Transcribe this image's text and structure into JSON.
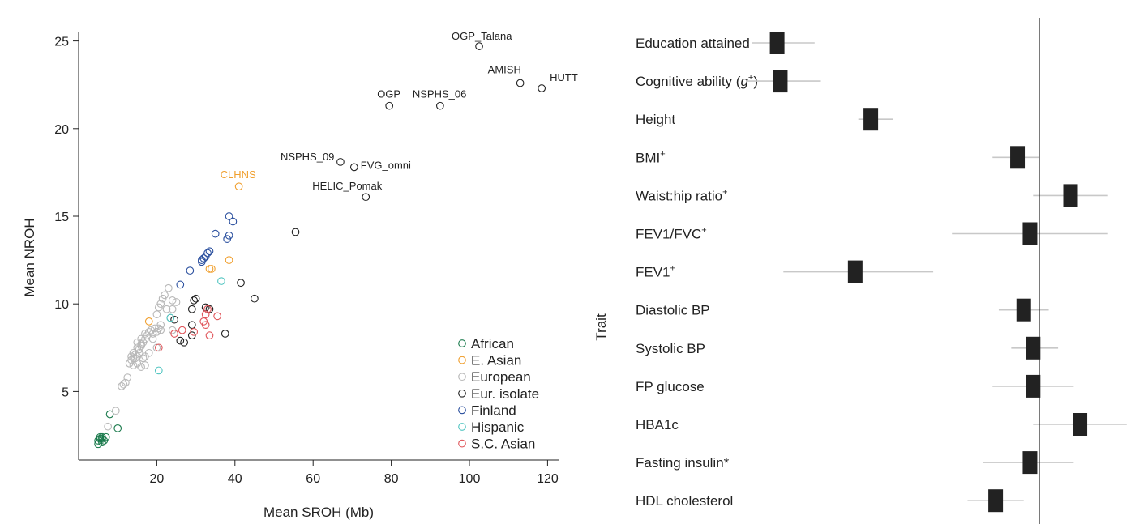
{
  "chart_data": [
    {
      "type": "scatter",
      "xlabel": "Mean SROH (Mb)",
      "ylabel": "Mean NROH",
      "xlim": [
        0,
        122
      ],
      "ylim": [
        0.5,
        26
      ],
      "xticks": [
        20,
        40,
        60,
        80,
        100,
        120
      ],
      "yticks": [
        5,
        10,
        15,
        20,
        25
      ],
      "grid": false,
      "legend_position": "bottom-right",
      "series": [
        {
          "name": "African",
          "color": "#1a7a4c",
          "points": [
            [
              5,
              2.2
            ],
            [
              5.5,
              2.3
            ],
            [
              6,
              2.4
            ],
            [
              6.5,
              2.2
            ],
            [
              5,
              2
            ],
            [
              7,
              2.4
            ],
            [
              6,
              2.1
            ],
            [
              5.5,
              2.4
            ],
            [
              8,
              3.7
            ],
            [
              10,
              2.9
            ],
            [
              6,
              2.3
            ]
          ]
        },
        {
          "name": "E. Asian",
          "color": "#f0a030",
          "points": [
            [
              41,
              16.7
            ],
            [
              38.5,
              12.5
            ],
            [
              34,
              12
            ],
            [
              33.5,
              12
            ],
            [
              18,
              9
            ]
          ]
        },
        {
          "name": "European",
          "color": "#b8b8b8",
          "points": [
            [
              7.5,
              3
            ],
            [
              9.5,
              3.9
            ],
            [
              11,
              5.3
            ],
            [
              11.5,
              5.4
            ],
            [
              12,
              5.5
            ],
            [
              12.5,
              5.8
            ],
            [
              13,
              6.6
            ],
            [
              14,
              6.5
            ],
            [
              13.5,
              6.8
            ],
            [
              14.5,
              6.9
            ],
            [
              15,
              7
            ],
            [
              14,
              7.2
            ],
            [
              15.5,
              7.4
            ],
            [
              16,
              7.6
            ],
            [
              16.5,
              7.8
            ],
            [
              17,
              8
            ],
            [
              17.5,
              8.2
            ],
            [
              18,
              8.4
            ],
            [
              18.5,
              8.5
            ],
            [
              19,
              8.3
            ],
            [
              19.5,
              8.6
            ],
            [
              20,
              8.4
            ],
            [
              20.5,
              8.6
            ],
            [
              21,
              8.5
            ],
            [
              15,
              7.8
            ],
            [
              16,
              8
            ],
            [
              17,
              8.3
            ],
            [
              15.5,
              7.2
            ],
            [
              16.5,
              6.9
            ],
            [
              17,
              6.5
            ],
            [
              16,
              6.4
            ],
            [
              15,
              6.6
            ],
            [
              14,
              6.9
            ],
            [
              14.5,
              7.1
            ],
            [
              13.5,
              7
            ],
            [
              15,
              7.5
            ],
            [
              16,
              7.7
            ],
            [
              19,
              8
            ],
            [
              20,
              9.4
            ],
            [
              20.5,
              9.8
            ],
            [
              21,
              10
            ],
            [
              21.5,
              10.3
            ],
            [
              22,
              10.5
            ],
            [
              23,
              10.9
            ],
            [
              24,
              10.2
            ],
            [
              25,
              10.1
            ],
            [
              22.5,
              9.7
            ],
            [
              24,
              9.7
            ],
            [
              21,
              8.8
            ],
            [
              23.5,
              9.2
            ],
            [
              24,
              8.5
            ],
            [
              20,
              7.5
            ],
            [
              18,
              7.2
            ],
            [
              17,
              7
            ]
          ]
        },
        {
          "name": "Eur. isolate",
          "color": "#222222",
          "points": [
            [
              102.5,
              24.7
            ],
            [
              113,
              22.6
            ],
            [
              118.5,
              22.3
            ],
            [
              79.5,
              21.3
            ],
            [
              92.5,
              21.3
            ],
            [
              67,
              18.1
            ],
            [
              70.5,
              17.8
            ],
            [
              73.5,
              16.1
            ],
            [
              55.5,
              14.1
            ],
            [
              41.5,
              11.2
            ],
            [
              45,
              10.3
            ],
            [
              30,
              10.3
            ],
            [
              29.5,
              10.2
            ],
            [
              29,
              9.7
            ],
            [
              32.5,
              9.8
            ],
            [
              33.5,
              9.7
            ],
            [
              24.5,
              9.1
            ],
            [
              29,
              8.8
            ],
            [
              37.5,
              8.3
            ],
            [
              29,
              8.2
            ],
            [
              26,
              7.9
            ],
            [
              27,
              7.8
            ]
          ]
        },
        {
          "name": "Finland",
          "color": "#2a4f9e",
          "points": [
            [
              38.5,
              15
            ],
            [
              39.5,
              14.7
            ],
            [
              38.5,
              13.9
            ],
            [
              38,
              13.7
            ],
            [
              35,
              14
            ],
            [
              33.5,
              13
            ],
            [
              33,
              12.9
            ],
            [
              32.5,
              12.7
            ],
            [
              32,
              12.6
            ],
            [
              31.5,
              12.4
            ],
            [
              31.5,
              12.5
            ],
            [
              28.5,
              11.9
            ],
            [
              26,
              11.1
            ]
          ]
        },
        {
          "name": "Hispanic",
          "color": "#4fc4c0",
          "points": [
            [
              36.5,
              11.3
            ],
            [
              20.5,
              6.2
            ],
            [
              23.5,
              9.2
            ]
          ]
        },
        {
          "name": "S.C. Asian",
          "color": "#e0555a",
          "points": [
            [
              33,
              9.7
            ],
            [
              35.5,
              9.3
            ],
            [
              32.5,
              9.4
            ],
            [
              32,
              9
            ],
            [
              32.5,
              8.8
            ],
            [
              33.5,
              8.2
            ],
            [
              29.5,
              8.4
            ],
            [
              26.5,
              8.5
            ],
            [
              24.5,
              8.3
            ],
            [
              20.5,
              7.5
            ]
          ]
        }
      ],
      "annotations": [
        {
          "text": "OGP_Talana",
          "x": 102.5,
          "y": 24.7,
          "color": "#222222"
        },
        {
          "text": "AMISH",
          "x": 113,
          "y": 22.6,
          "color": "#222222"
        },
        {
          "text": "HUTT",
          "x": 118.5,
          "y": 22.3,
          "color": "#222222"
        },
        {
          "text": "OGP",
          "x": 79.5,
          "y": 21.3,
          "color": "#222222"
        },
        {
          "text": "NSPHS_06",
          "x": 92.5,
          "y": 21.3,
          "color": "#222222"
        },
        {
          "text": "NSPHS_09",
          "x": 67,
          "y": 18.1,
          "color": "#222222"
        },
        {
          "text": "FVG_omni",
          "x": 70.5,
          "y": 17.8,
          "color": "#222222"
        },
        {
          "text": "CLHNS",
          "x": 41,
          "y": 16.7,
          "color": "#f0a030"
        },
        {
          "text": "HELIC_Pomak",
          "x": 73.5,
          "y": 16.1,
          "color": "#222222"
        }
      ]
    },
    {
      "type": "forest",
      "ylabel": "Trait",
      "null_line": 0,
      "xlim": [
        -1.0,
        0.12
      ],
      "rows": [
        {
          "label": "Education attained",
          "label_sup": "",
          "estimate": -0.84,
          "ci": [
            -0.92,
            -0.72
          ]
        },
        {
          "label": "Cognitive ability (g",
          "label_sup": "+",
          "label_after": ")",
          "label_italic": "g",
          "estimate": -0.83,
          "ci": [
            -0.94,
            -0.7
          ]
        },
        {
          "label": "Height",
          "label_sup": "",
          "estimate": -0.54,
          "ci": [
            -0.58,
            -0.47
          ]
        },
        {
          "label": "BMI",
          "label_sup": "+",
          "estimate": -0.07,
          "ci": [
            -0.15,
            0.0
          ]
        },
        {
          "label": "Waist:hip ratio",
          "label_sup": "+",
          "estimate": 0.1,
          "ci": [
            -0.02,
            0.22
          ]
        },
        {
          "label": "FEV1/FVC",
          "label_sup": "+",
          "estimate": -0.03,
          "ci": [
            -0.28,
            0.22
          ]
        },
        {
          "label": "FEV1",
          "label_sup": "+",
          "estimate": -0.59,
          "ci": [
            -0.82,
            -0.34
          ]
        },
        {
          "label": "Diastolic BP",
          "label_sup": "",
          "estimate": -0.05,
          "ci": [
            -0.13,
            0.03
          ]
        },
        {
          "label": "Systolic BP",
          "label_sup": "",
          "estimate": -0.02,
          "ci": [
            -0.09,
            0.06
          ]
        },
        {
          "label": "FP glucose",
          "label_sup": "",
          "estimate": -0.02,
          "ci": [
            -0.15,
            0.11
          ]
        },
        {
          "label": "HBA1c",
          "label_sup": "",
          "estimate": 0.13,
          "ci": [
            -0.02,
            0.28
          ]
        },
        {
          "label": "Fasting insulin*",
          "label_sup": "",
          "estimate": -0.03,
          "ci": [
            -0.18,
            0.11
          ]
        },
        {
          "label": "HDL cholesterol",
          "label_sup": "",
          "estimate": -0.14,
          "ci": [
            -0.23,
            -0.05
          ]
        }
      ]
    }
  ]
}
